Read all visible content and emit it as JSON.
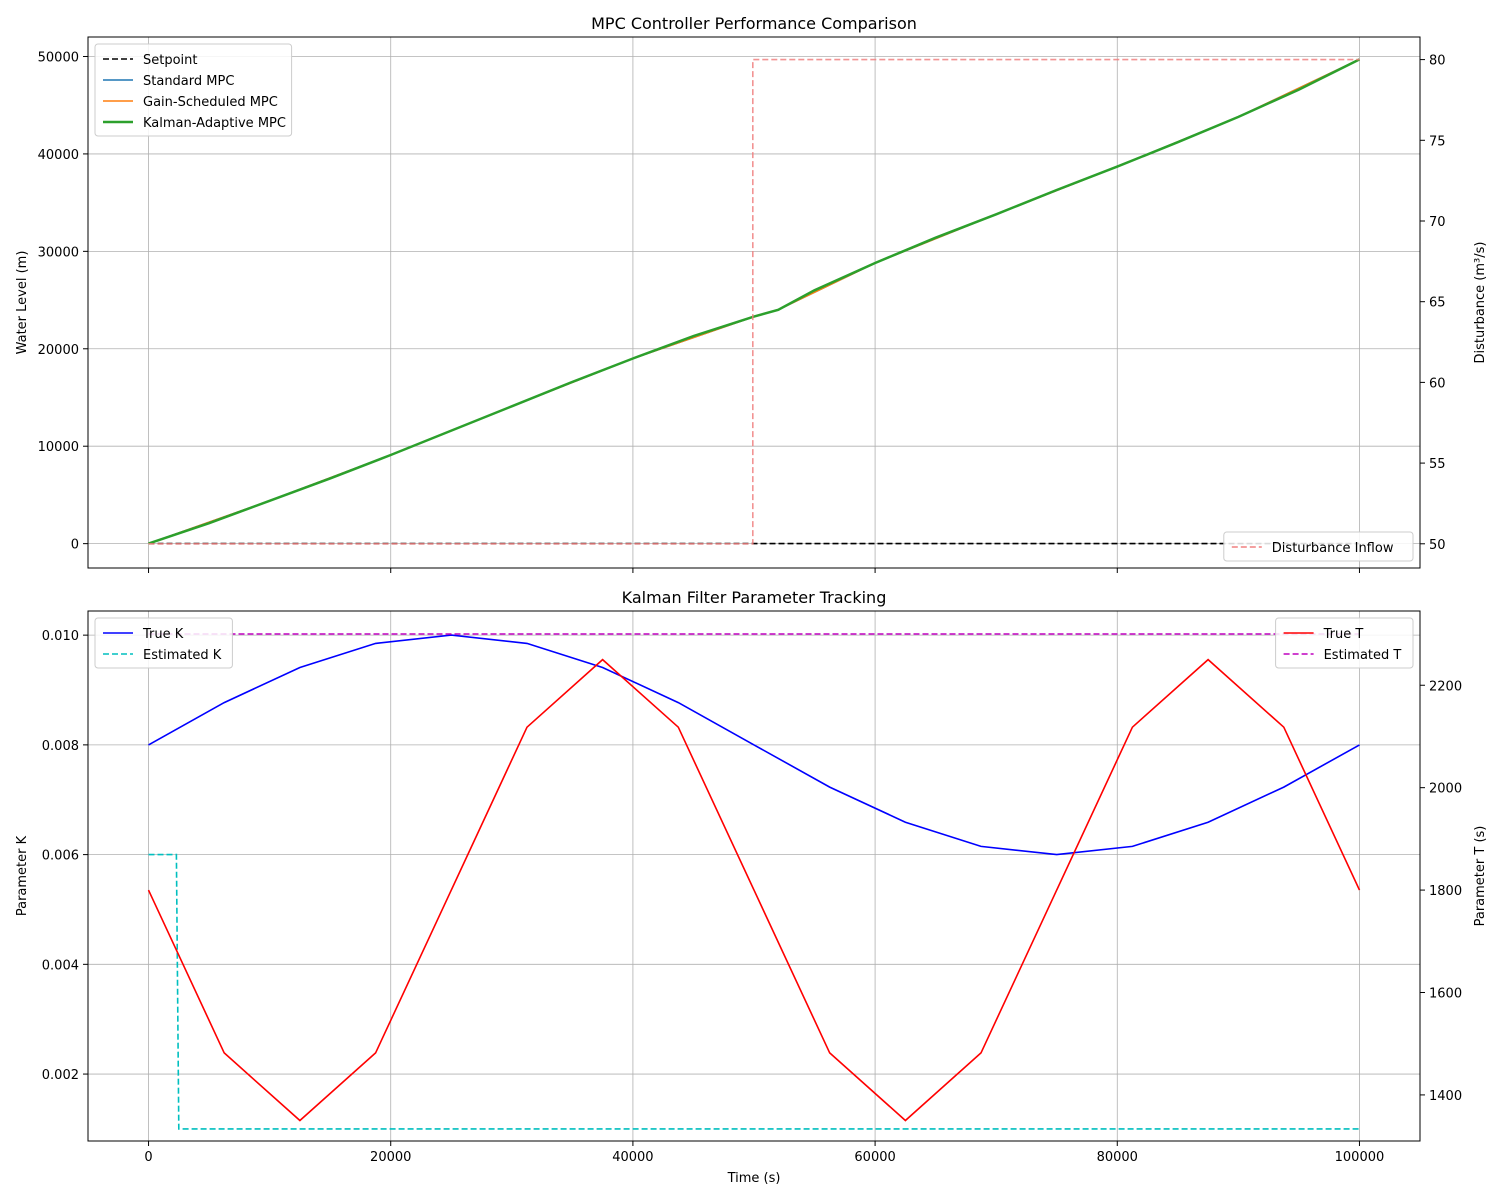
{
  "chart_data": [
    {
      "type": "line",
      "title": "MPC Controller Performance Comparison",
      "xlabel": "",
      "ylabel": "Water Level (m)",
      "y2label": "Disturbance (m³/s)",
      "xlim": [
        -5000,
        105000
      ],
      "ylim": [
        -2500,
        52000
      ],
      "y2lim": [
        48.5,
        81.4
      ],
      "xticks": [
        0,
        20000,
        40000,
        60000,
        80000,
        100000
      ],
      "yticks": [
        0,
        10000,
        20000,
        30000,
        40000,
        50000
      ],
      "y2ticks": [
        50,
        55,
        60,
        65,
        70,
        75,
        80
      ],
      "grid": true,
      "legend_location": "upper left",
      "legend2_location": "lower right",
      "series": [
        {
          "name": "Setpoint",
          "axis": "left",
          "color": "#000000",
          "style": "dashed",
          "x": [
            0,
            100000
          ],
          "y": [
            0,
            0
          ]
        },
        {
          "name": "Standard MPC",
          "axis": "left",
          "color": "#1f77b4",
          "style": "solid",
          "x": [
            0,
            10000,
            20000,
            30000,
            40000,
            50000,
            52000,
            60000,
            70000,
            80000,
            90000,
            100000
          ],
          "y": [
            0,
            4400,
            9100,
            14100,
            19000,
            23300,
            24000,
            28800,
            33800,
            38700,
            43800,
            49700
          ]
        },
        {
          "name": "Gain-Scheduled MPC",
          "axis": "left",
          "color": "#ff7f0e",
          "style": "solid",
          "x": [
            0,
            10000,
            20000,
            30000,
            40000,
            50000,
            52000,
            60000,
            70000,
            80000,
            90000,
            100000
          ],
          "y": [
            0,
            4400,
            9100,
            14100,
            19000,
            23300,
            24000,
            28800,
            33800,
            38700,
            43800,
            49700
          ]
        },
        {
          "name": "Kalman-Adaptive MPC",
          "axis": "left",
          "color": "#2ca02c",
          "style": "solid",
          "x": [
            0,
            5000,
            10000,
            15000,
            20000,
            25000,
            30000,
            35000,
            40000,
            45000,
            50000,
            52000,
            55000,
            60000,
            65000,
            70000,
            75000,
            80000,
            85000,
            90000,
            95000,
            100000
          ],
          "y": [
            0,
            2100,
            4400,
            6700,
            9100,
            11600,
            14100,
            16600,
            19000,
            21300,
            23300,
            24000,
            26000,
            28800,
            31400,
            33800,
            36300,
            38700,
            41200,
            43800,
            46600,
            49700
          ]
        },
        {
          "name": "Disturbance Inflow",
          "axis": "right",
          "color": "#f08080",
          "style": "dashed",
          "x": [
            0,
            49900,
            49900,
            100000
          ],
          "y": [
            50,
            50,
            80,
            80
          ]
        }
      ]
    },
    {
      "type": "line",
      "title": "Kalman Filter Parameter Tracking",
      "xlabel": "Time (s)",
      "ylabel": "Parameter K",
      "y2label": "Parameter T (s)",
      "xlim": [
        -5000,
        105000
      ],
      "ylim": [
        0.00078,
        0.01044
      ],
      "y2lim": [
        1310,
        2345
      ],
      "xticks": [
        0,
        20000,
        40000,
        60000,
        80000,
        100000
      ],
      "yticks": [
        0.002,
        0.004,
        0.006,
        0.008,
        0.01
      ],
      "y2ticks": [
        1400,
        1600,
        1800,
        2000,
        2200
      ],
      "grid": true,
      "legend_location": "upper left",
      "legend2_location": "upper right",
      "series": [
        {
          "name": "True K",
          "axis": "left",
          "color": "#0000ff",
          "style": "solid",
          "x": [
            0,
            6250,
            12500,
            18750,
            25000,
            31250,
            37500,
            43750,
            50000,
            56250,
            62500,
            68750,
            75000,
            81250,
            87500,
            93750,
            100000
          ],
          "y": [
            0.008,
            0.00877,
            0.00941,
            0.00985,
            0.01,
            0.00985,
            0.00941,
            0.00877,
            0.008,
            0.00723,
            0.00659,
            0.00615,
            0.006,
            0.00615,
            0.00659,
            0.00723,
            0.008
          ]
        },
        {
          "name": "Estimated K",
          "axis": "left",
          "color": "#00bfbf",
          "style": "dashed",
          "x": [
            0,
            2300,
            2500,
            100000
          ],
          "y": [
            0.006,
            0.006,
            0.001,
            0.001
          ]
        },
        {
          "name": "True T",
          "axis": "right",
          "color": "#ff0000",
          "style": "solid",
          "x": [
            0,
            6250,
            12500,
            18750,
            25000,
            31250,
            37500,
            43750,
            50000,
            56250,
            62500,
            68750,
            75000,
            81250,
            87500,
            93750,
            100000
          ],
          "y": [
            1800,
            1482,
            1350,
            1482,
            1800,
            2118,
            2250,
            2118,
            1800,
            1482,
            1350,
            1482,
            1800,
            2118,
            2250,
            2118,
            1800
          ]
        },
        {
          "name": "Estimated T",
          "axis": "right",
          "color": "#bf00bf",
          "style": "dashed",
          "x": [
            0,
            100000
          ],
          "y": [
            2300,
            2300
          ]
        }
      ]
    }
  ]
}
